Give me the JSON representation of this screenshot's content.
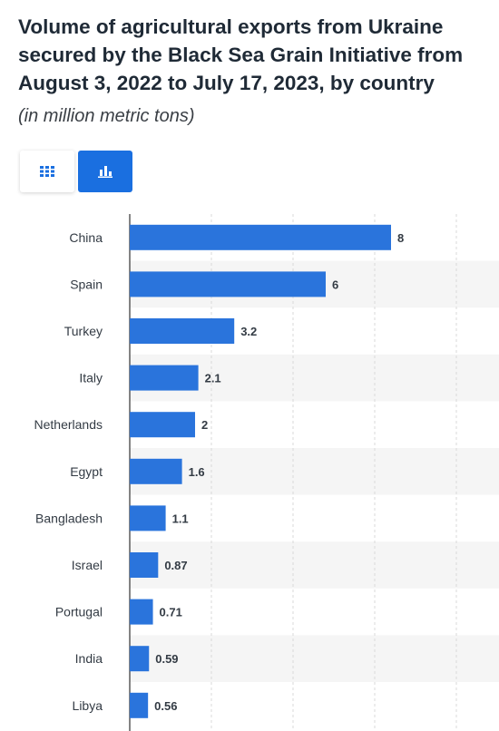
{
  "header": {
    "title": "Volume of agricultural exports from Ukraine secured by the Black Sea Grain Initiative from August 3, 2022 to July 17, 2023, by country",
    "subtitle": "(in million metric tons)"
  },
  "toggles": [
    {
      "icon": "table-grid-icon",
      "active": false
    },
    {
      "icon": "bar-chart-icon",
      "active": true
    }
  ],
  "colors": {
    "bar": "#2a74dc",
    "accent": "#1a6fe0",
    "band": "#f5f5f5"
  },
  "chart_data": {
    "type": "bar",
    "orientation": "horizontal",
    "categories": [
      "China",
      "Spain",
      "Turkey",
      "Italy",
      "Netherlands",
      "Egypt",
      "Bangladesh",
      "Israel",
      "Portugal",
      "India",
      "Libya"
    ],
    "values": [
      8,
      6,
      3.2,
      2.1,
      2,
      1.6,
      1.1,
      0.87,
      0.71,
      0.59,
      0.56
    ],
    "value_labels": [
      "8",
      "6",
      "3.2",
      "2.1",
      "2",
      "1.6",
      "1.1",
      "0.87",
      "0.71",
      "0.59",
      "0.56"
    ],
    "title": "Volume of agricultural exports from Ukraine secured by the Black Sea Grain Initiative from August 3, 2022 to July 17, 2023, by country",
    "xlabel": "",
    "ylabel": "",
    "xlim": [
      0,
      10
    ],
    "grid": true,
    "legend": "none"
  }
}
